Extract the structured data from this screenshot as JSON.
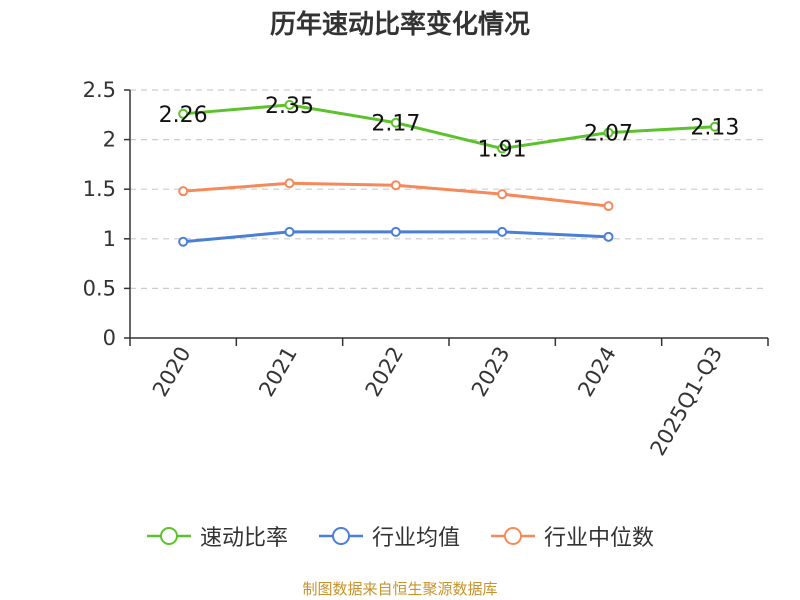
{
  "chart_data": {
    "type": "line",
    "title": "历年速动比率变化情况",
    "categories": [
      "2020",
      "2021",
      "2022",
      "2023",
      "2024",
      "2025Q1-Q3"
    ],
    "series": [
      {
        "name": "速动比率",
        "color": "#5cc22b",
        "values": [
          2.26,
          2.35,
          2.17,
          1.91,
          2.07,
          2.13
        ],
        "labels": [
          "2.26",
          "2.35",
          "2.17",
          "1.91",
          "2.07",
          "2.13"
        ]
      },
      {
        "name": "行业均值",
        "color": "#4a7fd8",
        "values": [
          0.97,
          1.07,
          1.07,
          1.07,
          1.02,
          null
        ]
      },
      {
        "name": "行业中位数",
        "color": "#f5895a",
        "values": [
          1.48,
          1.56,
          1.54,
          1.45,
          1.33,
          null
        ]
      }
    ],
    "yticks": [
      "0",
      "0.5",
      "1",
      "1.5",
      "2",
      "2.5"
    ],
    "ylim": [
      0,
      2.5
    ],
    "grid": true,
    "legend_position": "bottom"
  },
  "source": "制图数据来自恒生聚源数据库"
}
